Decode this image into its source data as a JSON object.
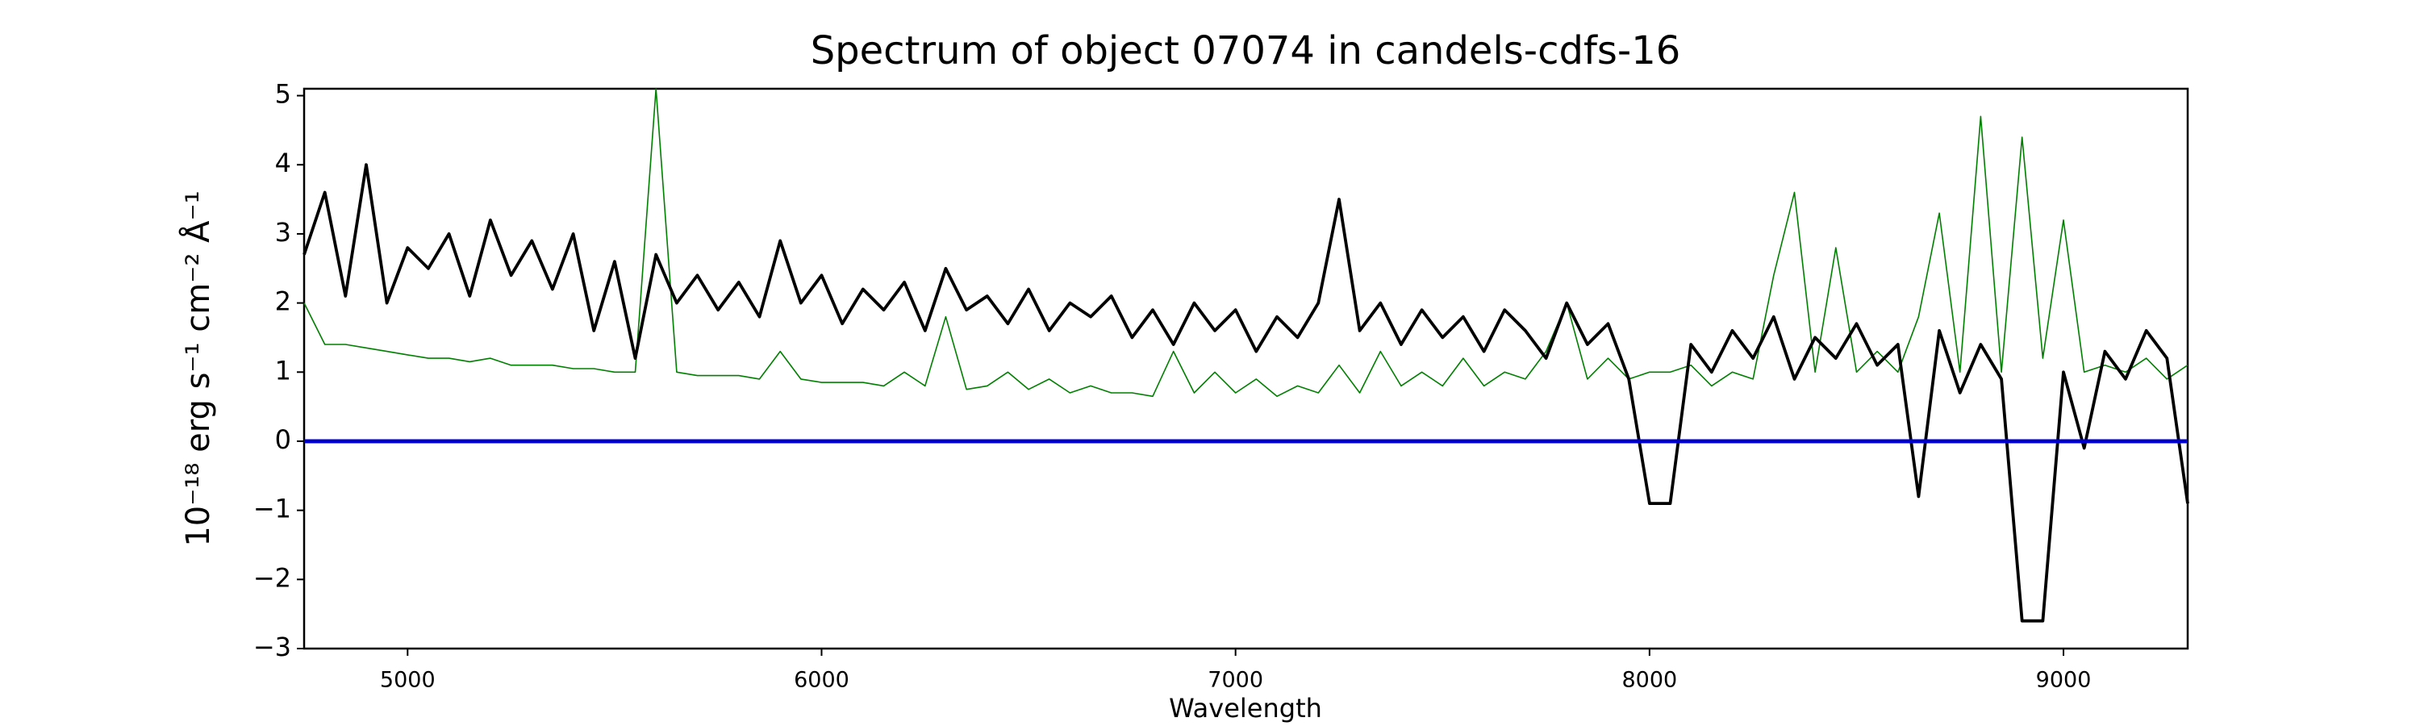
{
  "chart_data": {
    "type": "line",
    "title": "Spectrum of object 07074 in candels-cdfs-16",
    "x_label": "Wavelength",
    "y_label": "10⁻¹⁸ erg s⁻¹ cm⁻² Å⁻¹",
    "x": [
      4750,
      4800,
      4850,
      4900,
      4950,
      5000,
      5050,
      5100,
      5150,
      5200,
      5250,
      5300,
      5350,
      5400,
      5450,
      5500,
      5550,
      5600,
      5650,
      5700,
      5750,
      5800,
      5850,
      5900,
      5950,
      6000,
      6050,
      6100,
      6150,
      6200,
      6250,
      6300,
      6350,
      6400,
      6450,
      6500,
      6550,
      6600,
      6650,
      6700,
      6750,
      6800,
      6850,
      6900,
      6950,
      7000,
      7050,
      7100,
      7150,
      7200,
      7250,
      7300,
      7350,
      7400,
      7450,
      7500,
      7550,
      7600,
      7650,
      7700,
      7750,
      7800,
      7850,
      7900,
      7950,
      8000,
      8050,
      8100,
      8150,
      8200,
      8250,
      8300,
      8350,
      8400,
      8450,
      8500,
      8550,
      8600,
      8650,
      8700,
      8750,
      8800,
      8850,
      8900,
      8950,
      9000,
      9050,
      9100,
      9150,
      9200,
      9250,
      9300
    ],
    "series": [
      {
        "color": "#008000",
        "values": [
          2.0,
          1.4,
          1.4,
          1.35,
          1.3,
          1.25,
          1.2,
          1.2,
          1.15,
          1.2,
          1.1,
          1.1,
          1.1,
          1.05,
          1.05,
          1.0,
          1.0,
          5.1,
          1.0,
          0.95,
          0.95,
          0.95,
          0.9,
          1.3,
          0.9,
          0.85,
          0.85,
          0.85,
          0.8,
          1.0,
          0.8,
          1.8,
          0.75,
          0.8,
          1.0,
          0.75,
          0.9,
          0.7,
          0.8,
          0.7,
          0.7,
          0.65,
          1.3,
          0.7,
          1.0,
          0.7,
          0.9,
          0.65,
          0.8,
          0.7,
          1.1,
          0.7,
          1.3,
          0.8,
          1.0,
          0.8,
          1.2,
          0.8,
          1.0,
          0.9,
          1.3,
          2.0,
          0.9,
          1.2,
          0.9,
          1.0,
          1.0,
          1.1,
          0.8,
          1.0,
          0.9,
          2.4,
          3.6,
          1.0,
          2.8,
          1.0,
          1.3,
          1.0,
          1.8,
          3.3,
          1.0,
          4.7,
          1.0,
          4.4,
          1.2,
          3.2,
          1.0,
          1.1,
          1.0,
          1.2,
          0.9,
          1.1
        ]
      },
      {
        "color": "#000000",
        "values": [
          2.7,
          3.6,
          2.1,
          4.0,
          2.0,
          2.8,
          2.5,
          3.0,
          2.1,
          3.2,
          2.4,
          2.9,
          2.2,
          3.0,
          1.6,
          2.6,
          1.2,
          2.7,
          2.0,
          2.4,
          1.9,
          2.3,
          1.8,
          2.9,
          2.0,
          2.4,
          1.7,
          2.2,
          1.9,
          2.3,
          1.6,
          2.5,
          1.9,
          2.1,
          1.7,
          2.2,
          1.6,
          2.0,
          1.8,
          2.1,
          1.5,
          1.9,
          1.4,
          2.0,
          1.6,
          1.9,
          1.3,
          1.8,
          1.5,
          2.0,
          3.5,
          1.6,
          2.0,
          1.4,
          1.9,
          1.5,
          1.8,
          1.3,
          1.9,
          1.6,
          1.2,
          2.0,
          1.4,
          1.7,
          0.9,
          -0.9,
          -0.9,
          1.4,
          1.0,
          1.6,
          1.2,
          1.8,
          0.9,
          1.5,
          1.2,
          1.7,
          1.1,
          1.4,
          -0.8,
          1.6,
          0.7,
          1.4,
          0.9,
          -2.6,
          -2.6,
          1.0,
          -0.1,
          1.3,
          0.9,
          1.6,
          1.2,
          -0.9
        ]
      },
      {
        "color": "#0000cc",
        "values": [
          0,
          0,
          0,
          0,
          0,
          0,
          0,
          0,
          0,
          0,
          0,
          0,
          0,
          0,
          0,
          0,
          0,
          0,
          0,
          0,
          0,
          0,
          0,
          0,
          0,
          0,
          0,
          0,
          0,
          0,
          0,
          0,
          0,
          0,
          0,
          0,
          0,
          0,
          0,
          0,
          0,
          0,
          0,
          0,
          0,
          0,
          0,
          0,
          0,
          0,
          0,
          0,
          0,
          0,
          0,
          0,
          0,
          0,
          0,
          0,
          0,
          0,
          0,
          0,
          0,
          0,
          0,
          0,
          0,
          0,
          0,
          0,
          0,
          0,
          0,
          0,
          0,
          0,
          0,
          0,
          0,
          0,
          0,
          0,
          0,
          0,
          0,
          0,
          0,
          0,
          0,
          0
        ]
      }
    ],
    "xlim": [
      4750,
      9300
    ],
    "xticks": [
      5000,
      6000,
      7000,
      8000,
      9000
    ],
    "ylim": [
      -3,
      5.1
    ],
    "yticks": [
      {
        "value": -3,
        "label": "−3"
      },
      {
        "value": -2,
        "label": "−2"
      },
      {
        "value": -1,
        "label": "−1"
      },
      0,
      1,
      2,
      3,
      4,
      5
    ],
    "grid": false
  }
}
